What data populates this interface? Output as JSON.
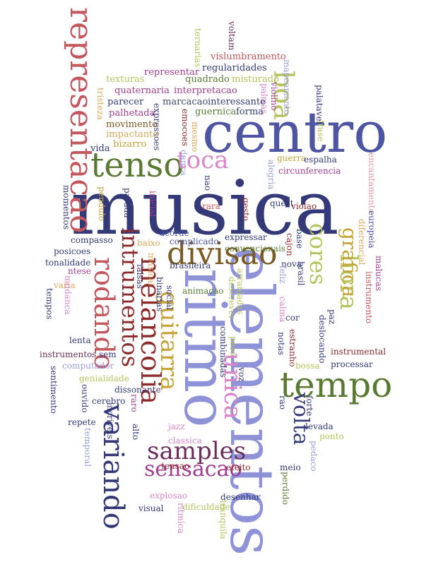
{
  "colors": {
    "navy": "#343a78",
    "blue": "#4e55a3",
    "periwinkle": "#8e92d6",
    "olive": "#5a7a33",
    "yellowgreen": "#b6c45e",
    "gold": "#c4a43a",
    "brown": "#7b5b23",
    "crimson": "#8d2b2b",
    "rose": "#c2575e",
    "magenta": "#a13e90",
    "orchid": "#d886c8",
    "pink": "#e09aa0",
    "tan": "#d9a95a",
    "wine": "#6b2f5b",
    "teal": "#3f4a6e",
    "lightblue": "#9aa0d8"
  },
  "words": [
    {
      "text": "musica",
      "color": "navy"
    },
    {
      "text": "centro",
      "color": "blue"
    },
    {
      "text": "elementos",
      "color": "periwinkle"
    },
    {
      "text": "ritmo",
      "color": "periwinkle"
    },
    {
      "text": "representacao",
      "color": "rose"
    },
    {
      "text": "tenso",
      "color": "olive"
    },
    {
      "text": "toca",
      "color": "orchid"
    },
    {
      "text": "boa",
      "color": "yellowgreen"
    },
    {
      "text": "tempo",
      "color": "olive"
    },
    {
      "text": "hora",
      "color": "yellowgreen"
    },
    {
      "text": "cores",
      "color": "yellowgreen"
    },
    {
      "text": "grafica",
      "color": "gold"
    },
    {
      "text": "intrumentos",
      "color": "crimson"
    },
    {
      "text": "rodando",
      "color": "rose"
    },
    {
      "text": "melancolia",
      "color": "crimson"
    },
    {
      "text": "guitarra",
      "color": "gold"
    },
    {
      "text": "divisao",
      "color": "brown"
    },
    {
      "text": "unica",
      "color": "orchid"
    },
    {
      "text": "volta",
      "color": "navy"
    },
    {
      "text": "variando",
      "color": "navy"
    },
    {
      "text": "samples",
      "color": "wine"
    },
    {
      "text": "sensacao",
      "color": "magenta"
    },
    {
      "text": "ternarias",
      "color": "yellowgreen"
    },
    {
      "text": "voltam",
      "color": "wine"
    },
    {
      "text": "mapeamento",
      "color": "lightblue"
    },
    {
      "text": "violino",
      "color": "magenta"
    },
    {
      "text": "vislumbramento",
      "color": "rose"
    },
    {
      "text": "regularidades",
      "color": "navy"
    },
    {
      "text": "representar",
      "color": "magenta"
    },
    {
      "text": "texturas",
      "color": "yellowgreen"
    },
    {
      "text": "quadrado",
      "color": "olive"
    },
    {
      "text": "misturado",
      "color": "yellowgreen"
    },
    {
      "text": "quaternaria",
      "color": "magenta"
    },
    {
      "text": "interpretacao",
      "color": "magenta"
    },
    {
      "text": "palmas",
      "color": "orchid"
    },
    {
      "text": "palatavel",
      "color": "navy"
    },
    {
      "text": "tristeza",
      "color": "tan"
    },
    {
      "text": "parecer",
      "color": "navy"
    },
    {
      "text": "marcacao",
      "color": "teal"
    },
    {
      "text": "interessante",
      "color": "navy"
    },
    {
      "text": "palhetada",
      "color": "magenta"
    },
    {
      "text": "expressoes",
      "color": "navy"
    },
    {
      "text": "emocoes",
      "color": "crimson"
    },
    {
      "text": "guernica",
      "color": "olive"
    },
    {
      "text": "forma",
      "color": "navy"
    },
    {
      "text": "frase",
      "color": "yellowgreen"
    },
    {
      "text": "movimento",
      "color": "brown"
    },
    {
      "text": "impactante",
      "color": "tan"
    },
    {
      "text": "mesmo",
      "color": "tan"
    },
    {
      "text": "bizarro",
      "color": "gold"
    },
    {
      "text": "danca",
      "color": "lightblue"
    },
    {
      "text": "vida",
      "color": "navy"
    },
    {
      "text": "guerra",
      "color": "gold"
    },
    {
      "text": "espalha",
      "color": "navy"
    },
    {
      "text": "alegria",
      "color": "lightblue"
    },
    {
      "text": "circunferencia",
      "color": "magenta"
    },
    {
      "text": "encantamento",
      "color": "pink"
    },
    {
      "text": "nao",
      "color": "navy"
    },
    {
      "text": "momentos",
      "color": "navy"
    },
    {
      "text": "pendulo",
      "color": "gold"
    },
    {
      "text": "parada",
      "color": "navy"
    },
    {
      "text": "inicial",
      "color": "magenta"
    },
    {
      "text": "rara",
      "color": "rose"
    },
    {
      "text": "gesto",
      "color": "crimson"
    },
    {
      "text": "quest",
      "color": "navy"
    },
    {
      "text": "violao",
      "color": "crimson"
    },
    {
      "text": "acorde",
      "color": "blue"
    },
    {
      "text": "expressar",
      "color": "navy"
    },
    {
      "text": "europeia",
      "color": "blue"
    },
    {
      "text": "diferencial",
      "color": "tan"
    },
    {
      "text": "compasso",
      "color": "navy"
    },
    {
      "text": "baixo",
      "color": "tan"
    },
    {
      "text": "complicado",
      "color": "blue"
    },
    {
      "text": "convencionais",
      "color": "olive"
    },
    {
      "text": "base",
      "color": "navy"
    },
    {
      "text": "cajon",
      "color": "crimson"
    },
    {
      "text": "malucas",
      "color": "magenta"
    },
    {
      "text": "posicoes",
      "color": "navy"
    },
    {
      "text": "tonalidade",
      "color": "navy"
    },
    {
      "text": "musical",
      "color": "tan"
    },
    {
      "text": "nova",
      "color": "navy"
    },
    {
      "text": "brasil",
      "color": "navy"
    },
    {
      "text": "instrumento",
      "color": "rose"
    },
    {
      "text": "ntese",
      "color": "magenta"
    },
    {
      "text": "falsas",
      "color": "navy"
    },
    {
      "text": "brasileira",
      "color": "navy"
    },
    {
      "text": "arranjadas",
      "color": "yellowgreen"
    },
    {
      "text": "feliz",
      "color": "lightblue"
    },
    {
      "text": "varia",
      "color": "tan"
    },
    {
      "text": "mudanca",
      "color": "orchid"
    },
    {
      "text": "binarias",
      "color": "navy"
    },
    {
      "text": "animacao",
      "color": "olive"
    },
    {
      "text": "social",
      "color": "navy"
    },
    {
      "text": "descrever",
      "color": "yellowgreen"
    },
    {
      "text": "tempos",
      "color": "navy"
    },
    {
      "text": "calma",
      "color": "orchid"
    },
    {
      "text": "cor",
      "color": "navy"
    },
    {
      "text": "paz",
      "color": "navy"
    },
    {
      "text": "deslocando",
      "color": "navy"
    },
    {
      "text": "lenta",
      "color": "navy"
    },
    {
      "text": "combinadas",
      "color": "navy"
    },
    {
      "text": "peso",
      "color": "yellowgreen"
    },
    {
      "text": "estranho",
      "color": "crimson"
    },
    {
      "text": "notas",
      "color": "navy"
    },
    {
      "text": "instrumentos",
      "color": "wine"
    },
    {
      "text": "sem",
      "color": "navy"
    },
    {
      "text": "instrumental",
      "color": "crimson"
    },
    {
      "text": "computador",
      "color": "lightblue"
    },
    {
      "text": "processar",
      "color": "navy"
    },
    {
      "text": "bossa",
      "color": "yellowgreen"
    },
    {
      "text": "sentimento",
      "color": "navy"
    },
    {
      "text": "genialidade",
      "color": "yellowgreen"
    },
    {
      "text": "dissonante",
      "color": "navy"
    },
    {
      "text": "voz",
      "color": "navy"
    },
    {
      "text": "ouvido",
      "color": "navy"
    },
    {
      "text": "raro",
      "color": "magenta"
    },
    {
      "text": "cerebro",
      "color": "navy"
    },
    {
      "text": "rao",
      "color": "navy"
    },
    {
      "text": "forte",
      "color": "navy"
    },
    {
      "text": "repete",
      "color": "navy"
    },
    {
      "text": "incriveis",
      "color": "navy"
    },
    {
      "text": "alto",
      "color": "navy"
    },
    {
      "text": "jazz",
      "color": "orchid"
    },
    {
      "text": "levada",
      "color": "navy"
    },
    {
      "text": "ponto",
      "color": "yellowgreen"
    },
    {
      "text": "temporal",
      "color": "lightblue"
    },
    {
      "text": "classica",
      "color": "orchid"
    },
    {
      "text": "pedaco",
      "color": "lightblue"
    },
    {
      "text": "tensao",
      "color": "crimson"
    },
    {
      "text": "efeito",
      "color": "crimson"
    },
    {
      "text": "meio",
      "color": "navy"
    },
    {
      "text": "explosao",
      "color": "orchid"
    },
    {
      "text": "perdido",
      "color": "olive"
    },
    {
      "text": "desenhar",
      "color": "navy"
    },
    {
      "text": "visual",
      "color": "navy"
    },
    {
      "text": "dificuldade",
      "color": "yellowgreen"
    },
    {
      "text": "tranquila",
      "color": "yellowgreen"
    },
    {
      "text": "ritmica",
      "color": "orchid"
    }
  ]
}
